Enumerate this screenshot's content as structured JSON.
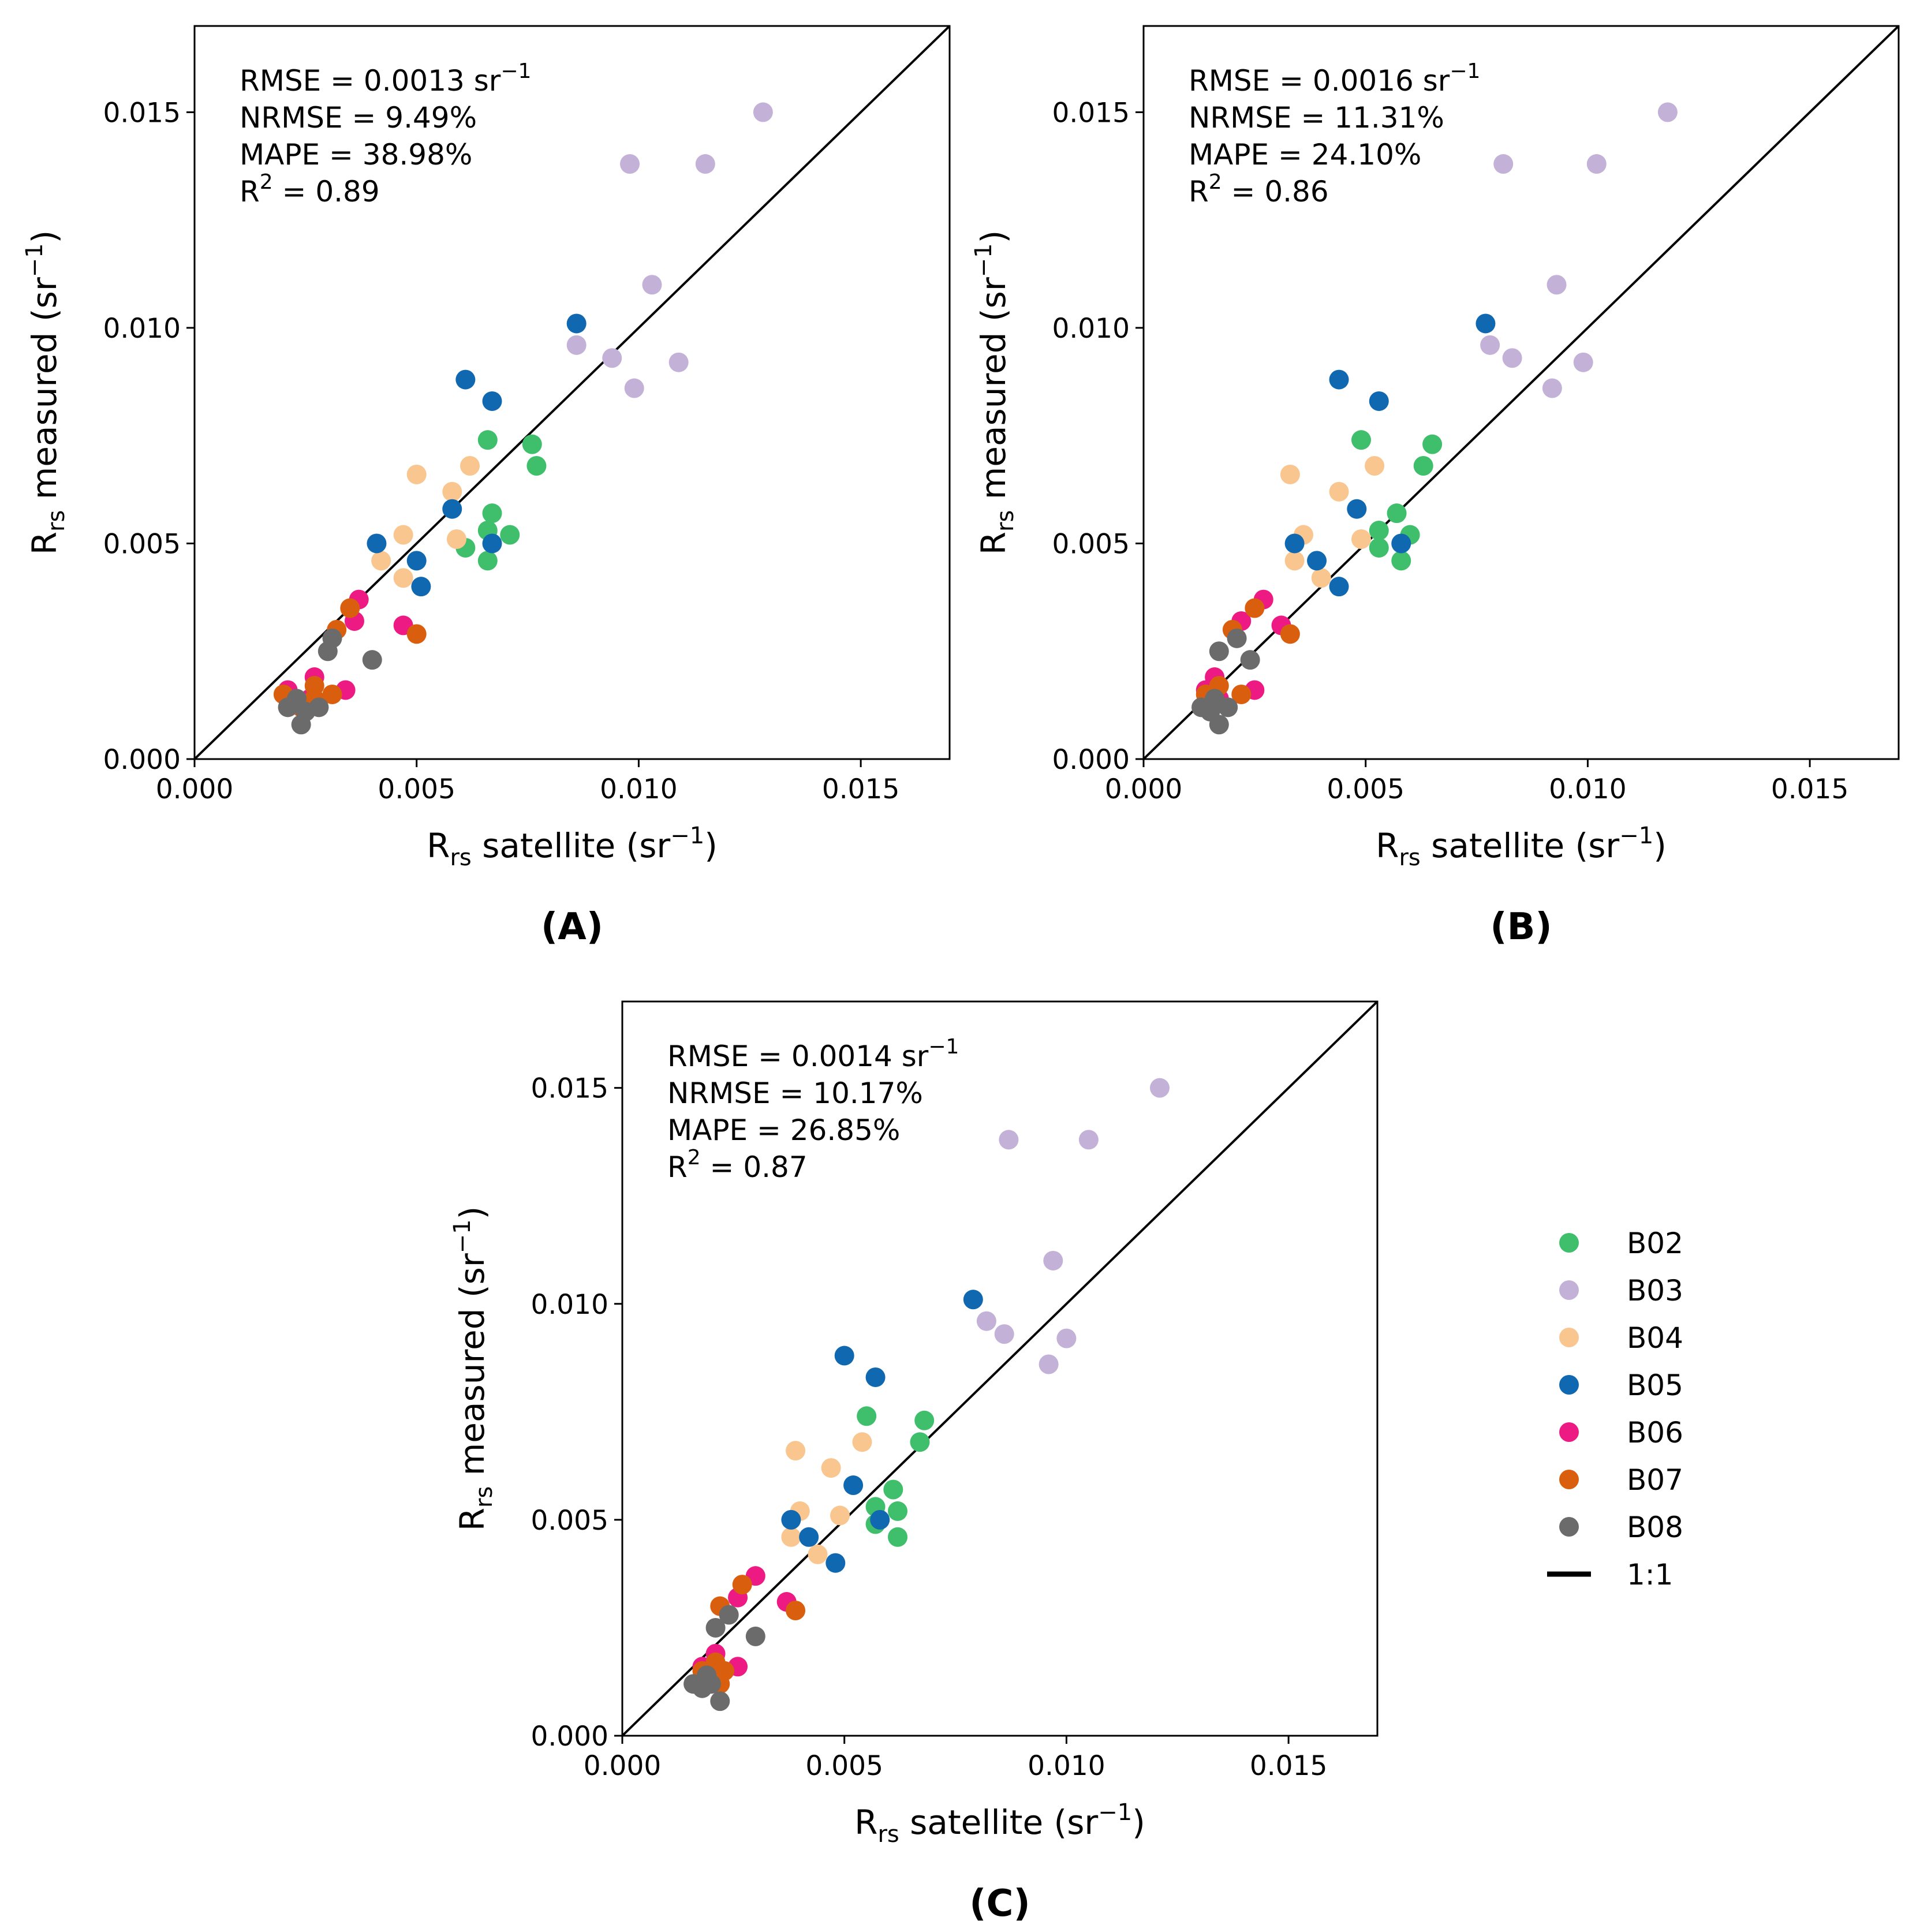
{
  "chart_data": [
    {
      "type": "scatter",
      "panel_label": "(A)",
      "xlabel": {
        "main": "R",
        "sub": "rs",
        "rest": " satellite (sr",
        "sup": "−1",
        "end": ")"
      },
      "ylabel": {
        "main": "R",
        "sub": "rs",
        "rest": " measured (sr",
        "sup": "−1",
        "end": ")"
      },
      "xlim": [
        0,
        0.017
      ],
      "ylim": [
        0,
        0.017
      ],
      "xticks": [
        "0.000",
        "0.005",
        "0.010",
        "0.015"
      ],
      "yticks": [
        "0.000",
        "0.005",
        "0.010",
        "0.015"
      ],
      "stats": [
        {
          "text": "RMSE = 0.0013 sr",
          "sup": "−1"
        },
        {
          "text": "NRMSE = 9.49%",
          "sup": ""
        },
        {
          "text": "MAPE = 38.98%",
          "sup": ""
        },
        {
          "text": "R",
          "sup": "2",
          "rest": " = 0.89"
        }
      ],
      "series": [
        {
          "name": "B02",
          "x": [
            0.0066,
            0.0076,
            0.0077,
            0.0067,
            0.0066,
            0.0071,
            0.0061,
            0.0066
          ],
          "y": [
            0.0074,
            0.0073,
            0.0068,
            0.0057,
            0.0053,
            0.0052,
            0.0049,
            0.0046
          ]
        },
        {
          "name": "B03",
          "x": [
            0.0128,
            0.0098,
            0.0115,
            0.0103,
            0.0086,
            0.0094,
            0.0109,
            0.0099
          ],
          "y": [
            0.015,
            0.0138,
            0.0138,
            0.011,
            0.0096,
            0.0093,
            0.0092,
            0.0086
          ]
        },
        {
          "name": "B04",
          "x": [
            0.005,
            0.0062,
            0.0058,
            0.0047,
            0.0059,
            0.0042,
            0.0047
          ],
          "y": [
            0.0066,
            0.0068,
            0.0062,
            0.0052,
            0.0051,
            0.0046,
            0.0042
          ]
        },
        {
          "name": "B05",
          "x": [
            0.0086,
            0.0061,
            0.0067,
            0.0058,
            0.0041,
            0.0067,
            0.005,
            0.0051
          ],
          "y": [
            0.0101,
            0.0088,
            0.0083,
            0.0058,
            0.005,
            0.005,
            0.0046,
            0.004
          ]
        },
        {
          "name": "B06",
          "x": [
            0.0037,
            0.0036,
            0.0047,
            0.0027,
            0.0021,
            0.0034,
            0.0026
          ],
          "y": [
            0.0037,
            0.0032,
            0.0031,
            0.0019,
            0.0016,
            0.0016,
            0.0014
          ]
        },
        {
          "name": "B07",
          "x": [
            0.0035,
            0.0032,
            0.005,
            0.0027,
            0.002,
            0.0031,
            0.0027,
            0.0024
          ],
          "y": [
            0.0035,
            0.003,
            0.0029,
            0.0017,
            0.0015,
            0.0015,
            0.0014,
            0.0012
          ]
        },
        {
          "name": "B08",
          "x": [
            0.0031,
            0.003,
            0.004,
            0.0023,
            0.0021,
            0.0028,
            0.0025,
            0.0024
          ],
          "y": [
            0.0028,
            0.0025,
            0.0023,
            0.0014,
            0.0012,
            0.0012,
            0.0011,
            0.0008
          ]
        }
      ]
    },
    {
      "type": "scatter",
      "panel_label": "(B)",
      "xlabel": {
        "main": "R",
        "sub": "rs",
        "rest": " satellite (sr",
        "sup": "−1",
        "end": ")"
      },
      "ylabel": {
        "main": "R",
        "sub": "rs",
        "rest": " measured (sr",
        "sup": "−1",
        "end": ")"
      },
      "xlim": [
        0,
        0.017
      ],
      "ylim": [
        0,
        0.017
      ],
      "xticks": [
        "0.000",
        "0.005",
        "0.010",
        "0.015"
      ],
      "yticks": [
        "0.000",
        "0.005",
        "0.010",
        "0.015"
      ],
      "stats": [
        {
          "text": "RMSE = 0.0016 sr",
          "sup": "−1"
        },
        {
          "text": "NRMSE = 11.31%",
          "sup": ""
        },
        {
          "text": "MAPE = 24.10%",
          "sup": ""
        },
        {
          "text": "R",
          "sup": "2",
          "rest": " = 0.86"
        }
      ],
      "series": [
        {
          "name": "B02",
          "x": [
            0.0049,
            0.0065,
            0.0063,
            0.0057,
            0.0053,
            0.006,
            0.0053,
            0.0058
          ],
          "y": [
            0.0074,
            0.0073,
            0.0068,
            0.0057,
            0.0053,
            0.0052,
            0.0049,
            0.0046
          ]
        },
        {
          "name": "B03",
          "x": [
            0.0118,
            0.0081,
            0.0102,
            0.0093,
            0.0078,
            0.0083,
            0.0099,
            0.0092
          ],
          "y": [
            0.015,
            0.0138,
            0.0138,
            0.011,
            0.0096,
            0.0093,
            0.0092,
            0.0086
          ]
        },
        {
          "name": "B04",
          "x": [
            0.0033,
            0.0052,
            0.0044,
            0.0036,
            0.0049,
            0.0034,
            0.004
          ],
          "y": [
            0.0066,
            0.0068,
            0.0062,
            0.0052,
            0.0051,
            0.0046,
            0.0042
          ]
        },
        {
          "name": "B05",
          "x": [
            0.0077,
            0.0044,
            0.0053,
            0.0048,
            0.0034,
            0.0058,
            0.0039,
            0.0044
          ],
          "y": [
            0.0101,
            0.0088,
            0.0083,
            0.0058,
            0.005,
            0.005,
            0.0046,
            0.004
          ]
        },
        {
          "name": "B06",
          "x": [
            0.0027,
            0.0022,
            0.0031,
            0.0016,
            0.0014,
            0.0025,
            0.0017
          ],
          "y": [
            0.0037,
            0.0032,
            0.0031,
            0.0019,
            0.0016,
            0.0016,
            0.0014
          ]
        },
        {
          "name": "B07",
          "x": [
            0.0025,
            0.002,
            0.0033,
            0.0017,
            0.0014,
            0.0022,
            0.0016,
            0.0015
          ],
          "y": [
            0.0035,
            0.003,
            0.0029,
            0.0017,
            0.0015,
            0.0015,
            0.0014,
            0.0012
          ]
        },
        {
          "name": "B08",
          "x": [
            0.0021,
            0.0017,
            0.0024,
            0.0016,
            0.0013,
            0.0019,
            0.0015,
            0.0017
          ],
          "y": [
            0.0028,
            0.0025,
            0.0023,
            0.0014,
            0.0012,
            0.0012,
            0.0011,
            0.0008
          ]
        }
      ]
    },
    {
      "type": "scatter",
      "panel_label": "(C)",
      "xlabel": {
        "main": "R",
        "sub": "rs",
        "rest": " satellite (sr",
        "sup": "−1",
        "end": ")"
      },
      "ylabel": {
        "main": "R",
        "sub": "rs",
        "rest": " measured (sr",
        "sup": "−1",
        "end": ")"
      },
      "xlim": [
        0,
        0.017
      ],
      "ylim": [
        0,
        0.017
      ],
      "xticks": [
        "0.000",
        "0.005",
        "0.010",
        "0.015"
      ],
      "yticks": [
        "0.000",
        "0.005",
        "0.010",
        "0.015"
      ],
      "stats": [
        {
          "text": "RMSE = 0.0014 sr",
          "sup": "−1"
        },
        {
          "text": "NRMSE = 10.17%",
          "sup": ""
        },
        {
          "text": "MAPE = 26.85%",
          "sup": ""
        },
        {
          "text": "R",
          "sup": "2",
          "rest": " = 0.87"
        }
      ],
      "series": [
        {
          "name": "B02",
          "x": [
            0.0055,
            0.0068,
            0.0067,
            0.0061,
            0.0057,
            0.0062,
            0.0057,
            0.0062
          ],
          "y": [
            0.0074,
            0.0073,
            0.0068,
            0.0057,
            0.0053,
            0.0052,
            0.0049,
            0.0046
          ]
        },
        {
          "name": "B03",
          "x": [
            0.0121,
            0.0087,
            0.0105,
            0.0097,
            0.0082,
            0.0086,
            0.01,
            0.0096
          ],
          "y": [
            0.015,
            0.0138,
            0.0138,
            0.011,
            0.0096,
            0.0093,
            0.0092,
            0.0086
          ]
        },
        {
          "name": "B04",
          "x": [
            0.0039,
            0.0054,
            0.0047,
            0.004,
            0.0049,
            0.0038,
            0.0044
          ],
          "y": [
            0.0066,
            0.0068,
            0.0062,
            0.0052,
            0.0051,
            0.0046,
            0.0042
          ]
        },
        {
          "name": "B05",
          "x": [
            0.0079,
            0.005,
            0.0057,
            0.0052,
            0.0038,
            0.0058,
            0.0042,
            0.0048
          ],
          "y": [
            0.0101,
            0.0088,
            0.0083,
            0.0058,
            0.005,
            0.005,
            0.0046,
            0.004
          ]
        },
        {
          "name": "B06",
          "x": [
            0.003,
            0.0026,
            0.0037,
            0.0021,
            0.0018,
            0.0026,
            0.002
          ],
          "y": [
            0.0037,
            0.0032,
            0.0031,
            0.0019,
            0.0016,
            0.0016,
            0.0014
          ]
        },
        {
          "name": "B07",
          "x": [
            0.0027,
            0.0022,
            0.0039,
            0.0021,
            0.0018,
            0.0023,
            0.002,
            0.0022
          ],
          "y": [
            0.0035,
            0.003,
            0.0029,
            0.0017,
            0.0015,
            0.0015,
            0.0014,
            0.0012
          ]
        },
        {
          "name": "B08",
          "x": [
            0.0024,
            0.0021,
            0.003,
            0.0019,
            0.0016,
            0.002,
            0.0018,
            0.0022
          ],
          "y": [
            0.0028,
            0.0025,
            0.0023,
            0.0014,
            0.0012,
            0.0012,
            0.0011,
            0.0008
          ]
        }
      ]
    }
  ],
  "legend": {
    "items": [
      {
        "name": "B02",
        "color": "#3fbf6b"
      },
      {
        "name": "B03",
        "color": "#c4b1d8"
      },
      {
        "name": "B04",
        "color": "#f9c690"
      },
      {
        "name": "B05",
        "color": "#1068b0"
      },
      {
        "name": "B06",
        "color": "#ee1a84"
      },
      {
        "name": "B07",
        "color": "#d95f0e"
      },
      {
        "name": "B08",
        "color": "#6b6b6b"
      }
    ],
    "line_label": "1:1",
    "line_color": "#000000"
  }
}
